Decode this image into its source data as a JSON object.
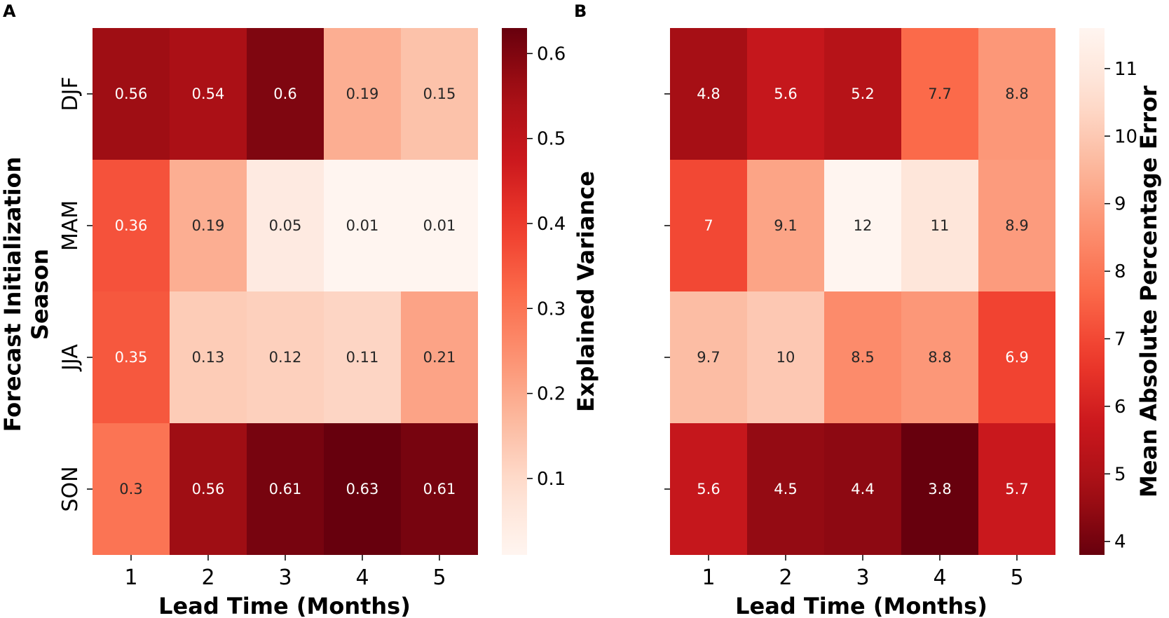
{
  "chart_data": [
    {
      "type": "heatmap",
      "panel_label": "A",
      "xlabel": "Lead Time (Months)",
      "ylabel_lines": [
        "Forecast Initialization",
        "Season"
      ],
      "x_tick_labels": [
        "1",
        "2",
        "3",
        "4",
        "5"
      ],
      "y_tick_labels": [
        "DJF",
        "MAM",
        "JJA",
        "SON"
      ],
      "values": [
        [
          0.56,
          0.54,
          0.6,
          0.19,
          0.15
        ],
        [
          0.36,
          0.19,
          0.05,
          0.01,
          0.01
        ],
        [
          0.35,
          0.13,
          0.12,
          0.11,
          0.21
        ],
        [
          0.3,
          0.56,
          0.61,
          0.63,
          0.61
        ]
      ],
      "value_labels": [
        [
          "0.56",
          "0.54",
          "0.6",
          "0.19",
          "0.15"
        ],
        [
          "0.36",
          "0.19",
          "0.05",
          "0.01",
          "0.01"
        ],
        [
          "0.35",
          "0.13",
          "0.12",
          "0.11",
          "0.21"
        ],
        [
          "0.3",
          "0.56",
          "0.61",
          "0.63",
          "0.61"
        ]
      ],
      "colormap": "Reds",
      "colorbar": {
        "label": "Explained Variance",
        "range": [
          0.01,
          0.63
        ],
        "ticks": [
          0.1,
          0.2,
          0.3,
          0.4,
          0.5,
          0.6
        ],
        "tick_labels": [
          "0.1",
          "0.2",
          "0.3",
          "0.4",
          "0.5",
          "0.6"
        ]
      }
    },
    {
      "type": "heatmap",
      "panel_label": "B",
      "xlabel": "Lead Time (Months)",
      "x_tick_labels": [
        "1",
        "2",
        "3",
        "4",
        "5"
      ],
      "y_tick_labels": [],
      "values": [
        [
          4.8,
          5.6,
          5.2,
          7.7,
          8.8
        ],
        [
          7.0,
          9.1,
          11.6,
          10.9,
          8.9
        ],
        [
          9.7,
          10.0,
          8.5,
          8.8,
          6.9
        ],
        [
          5.6,
          4.5,
          4.4,
          3.8,
          5.7
        ]
      ],
      "value_labels": [
        [
          "4.8",
          "5.6",
          "5.2",
          "7.7",
          "8.8"
        ],
        [
          "7",
          "9.1",
          "12",
          "11",
          "8.9"
        ],
        [
          "9.7",
          "10",
          "8.5",
          "8.8",
          "6.9"
        ],
        [
          "5.6",
          "4.5",
          "4.4",
          "3.8",
          "5.7"
        ]
      ],
      "colormap": "Reds_r",
      "colorbar": {
        "label": "Mean Absolute Percentage Error",
        "range": [
          3.8,
          11.6
        ],
        "ticks": [
          4,
          5,
          6,
          7,
          8,
          9,
          10,
          11
        ],
        "tick_labels": [
          "4",
          "5",
          "6",
          "7",
          "8",
          "9",
          "10",
          "11"
        ]
      }
    }
  ],
  "colors": {
    "reds_stops": [
      "#fff5f0",
      "#fee0d2",
      "#fcbba1",
      "#fc9272",
      "#fb6a4a",
      "#ef3b2c",
      "#cb181d",
      "#a50f15",
      "#67000d"
    ]
  }
}
